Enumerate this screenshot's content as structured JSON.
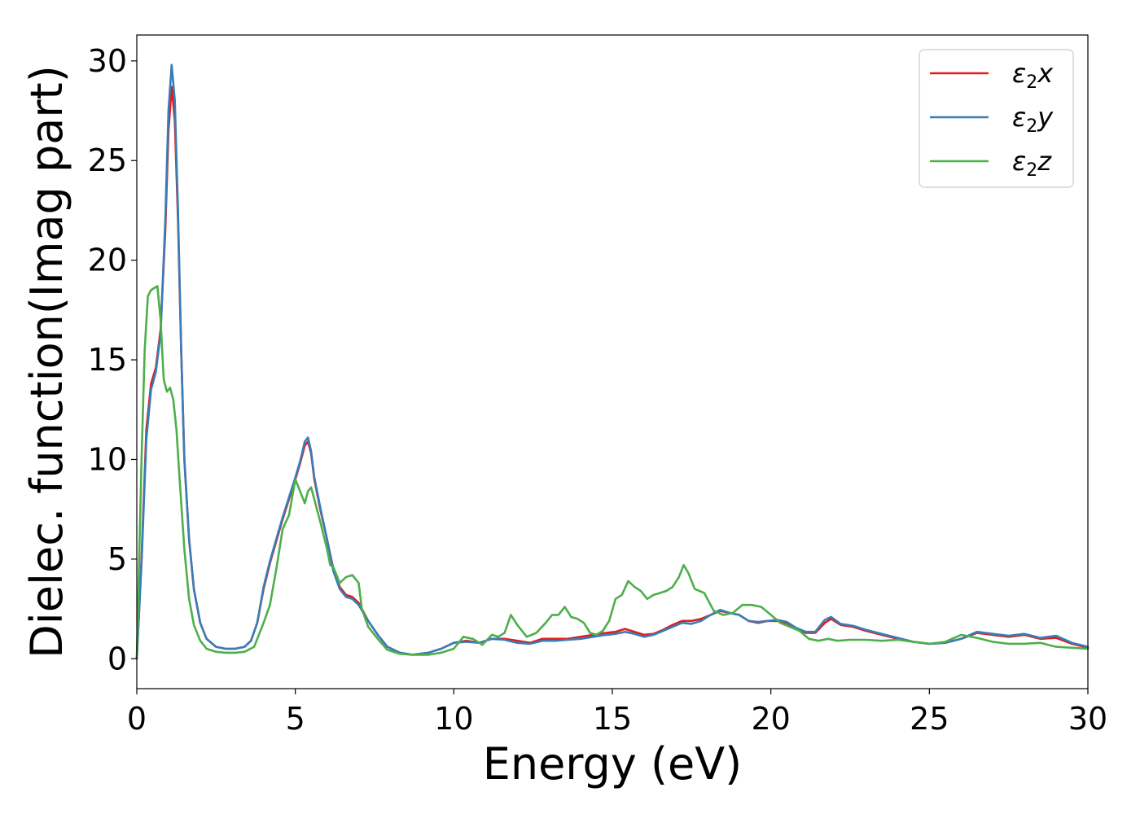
{
  "chart_data": {
    "type": "line",
    "title": "",
    "xlabel": "Energy (eV)",
    "ylabel": "Dielec. function(Imag part)",
    "xlim": [
      0,
      30
    ],
    "ylim": [
      -1.5,
      31.3
    ],
    "xticks": [
      "0",
      "5",
      "10",
      "15",
      "20",
      "25",
      "30"
    ],
    "yticks": [
      "0",
      "5",
      "10",
      "15",
      "20",
      "25",
      "30"
    ],
    "grid": false,
    "legend_position": "top-right",
    "series": [
      {
        "name": "ε2x",
        "legend": {
          "base": "ε",
          "sub": "2",
          "suffix": "x"
        },
        "color": "#e41a1c",
        "x": [
          0,
          0.15,
          0.3,
          0.45,
          0.6,
          0.75,
          0.9,
          1.0,
          1.1,
          1.2,
          1.3,
          1.4,
          1.5,
          1.65,
          1.8,
          2.0,
          2.2,
          2.5,
          2.8,
          3.1,
          3.4,
          3.6,
          3.8,
          4.0,
          4.2,
          4.4,
          4.6,
          4.8,
          5.0,
          5.15,
          5.3,
          5.4,
          5.5,
          5.6,
          5.8,
          6.0,
          6.2,
          6.4,
          6.6,
          6.8,
          7.0,
          7.3,
          7.6,
          7.9,
          8.3,
          8.7,
          9.2,
          9.6,
          10.0,
          10.4,
          10.8,
          11.2,
          11.6,
          12.0,
          12.4,
          12.8,
          13.2,
          13.6,
          14.0,
          14.4,
          14.8,
          15.1,
          15.4,
          15.7,
          16.0,
          16.3,
          16.6,
          16.9,
          17.2,
          17.5,
          17.8,
          18.1,
          18.4,
          18.7,
          19.0,
          19.3,
          19.6,
          19.9,
          20.2,
          20.5,
          20.8,
          21.1,
          21.4,
          21.7,
          21.9,
          22.2,
          22.6,
          23.0,
          23.5,
          24.0,
          24.5,
          25.0,
          25.5,
          26.0,
          26.5,
          27.0,
          27.5,
          28.0,
          28.5,
          29.0,
          29.5,
          30.0
        ],
        "y": [
          0,
          5,
          11.5,
          13.8,
          14.6,
          16.5,
          21.5,
          26.5,
          28.7,
          27.0,
          22.0,
          15.5,
          10.0,
          6.0,
          3.5,
          1.8,
          1.0,
          0.6,
          0.5,
          0.5,
          0.6,
          0.9,
          1.8,
          3.5,
          4.8,
          5.9,
          7.0,
          8.0,
          9.0,
          9.8,
          10.7,
          10.9,
          10.3,
          9.0,
          7.4,
          6.0,
          4.5,
          3.6,
          3.2,
          3.1,
          2.8,
          1.9,
          1.2,
          0.6,
          0.3,
          0.2,
          0.3,
          0.5,
          0.8,
          0.9,
          0.8,
          1.0,
          1.0,
          0.9,
          0.8,
          1.0,
          1.0,
          1.0,
          1.1,
          1.2,
          1.3,
          1.35,
          1.5,
          1.35,
          1.2,
          1.25,
          1.45,
          1.7,
          1.9,
          1.9,
          2.0,
          2.2,
          2.4,
          2.3,
          2.2,
          1.9,
          1.8,
          1.9,
          1.9,
          1.8,
          1.5,
          1.3,
          1.3,
          1.8,
          2.0,
          1.7,
          1.6,
          1.4,
          1.2,
          1.0,
          0.85,
          0.75,
          0.8,
          1.0,
          1.3,
          1.2,
          1.1,
          1.2,
          1.0,
          1.05,
          0.75,
          0.55
        ]
      },
      {
        "name": "ε2y",
        "legend": {
          "base": "ε",
          "sub": "2",
          "suffix": "y"
        },
        "color": "#377eb8",
        "x": [
          0,
          0.15,
          0.3,
          0.45,
          0.6,
          0.75,
          0.9,
          1.0,
          1.1,
          1.2,
          1.3,
          1.4,
          1.5,
          1.65,
          1.8,
          2.0,
          2.2,
          2.5,
          2.8,
          3.1,
          3.4,
          3.6,
          3.8,
          4.0,
          4.2,
          4.4,
          4.6,
          4.8,
          5.0,
          5.15,
          5.3,
          5.4,
          5.5,
          5.6,
          5.8,
          6.0,
          6.2,
          6.4,
          6.6,
          6.8,
          7.0,
          7.3,
          7.6,
          7.9,
          8.3,
          8.7,
          9.2,
          9.6,
          10.0,
          10.4,
          10.8,
          11.2,
          11.6,
          12.0,
          12.4,
          12.8,
          13.2,
          13.6,
          14.0,
          14.4,
          14.8,
          15.1,
          15.4,
          15.7,
          16.0,
          16.3,
          16.6,
          16.9,
          17.2,
          17.5,
          17.8,
          18.1,
          18.4,
          18.7,
          19.0,
          19.3,
          19.6,
          19.9,
          20.2,
          20.5,
          20.8,
          21.1,
          21.4,
          21.7,
          21.9,
          22.2,
          22.6,
          23.0,
          23.5,
          24.0,
          24.5,
          25.0,
          25.5,
          26.0,
          26.5,
          27.0,
          27.5,
          28.0,
          28.5,
          29.0,
          29.5,
          30.0
        ],
        "y": [
          0,
          4.8,
          11.0,
          13.5,
          14.4,
          16.3,
          22.0,
          27.5,
          29.8,
          28.0,
          22.5,
          15.5,
          10.0,
          6.0,
          3.5,
          1.8,
          1.0,
          0.6,
          0.5,
          0.5,
          0.6,
          0.9,
          1.8,
          3.6,
          4.9,
          6.0,
          7.1,
          8.1,
          9.1,
          9.9,
          10.9,
          11.1,
          10.4,
          9.1,
          7.5,
          6.0,
          4.4,
          3.5,
          3.1,
          3.0,
          2.7,
          1.9,
          1.2,
          0.6,
          0.3,
          0.2,
          0.3,
          0.5,
          0.8,
          0.85,
          0.8,
          1.0,
          0.95,
          0.8,
          0.75,
          0.9,
          0.9,
          0.95,
          1.0,
          1.1,
          1.2,
          1.25,
          1.35,
          1.25,
          1.1,
          1.2,
          1.4,
          1.6,
          1.8,
          1.75,
          1.9,
          2.2,
          2.45,
          2.3,
          2.2,
          1.9,
          1.85,
          1.9,
          1.95,
          1.85,
          1.55,
          1.35,
          1.35,
          1.95,
          2.1,
          1.75,
          1.65,
          1.45,
          1.25,
          1.05,
          0.85,
          0.75,
          0.8,
          1.0,
          1.35,
          1.25,
          1.15,
          1.25,
          1.05,
          1.15,
          0.8,
          0.6
        ]
      },
      {
        "name": "ε2z",
        "legend": {
          "base": "ε",
          "sub": "2",
          "suffix": "z"
        },
        "color": "#4daf4a",
        "x": [
          0,
          0.15,
          0.25,
          0.35,
          0.45,
          0.55,
          0.65,
          0.75,
          0.85,
          0.95,
          1.05,
          1.15,
          1.25,
          1.35,
          1.5,
          1.65,
          1.8,
          2.0,
          2.2,
          2.5,
          2.8,
          3.1,
          3.4,
          3.7,
          4.0,
          4.2,
          4.4,
          4.6,
          4.8,
          5.0,
          5.2,
          5.3,
          5.4,
          5.5,
          5.6,
          5.8,
          6.0,
          6.1,
          6.2,
          6.4,
          6.6,
          6.8,
          7.0,
          7.1,
          7.3,
          7.6,
          7.9,
          8.3,
          8.7,
          9.2,
          9.6,
          10.0,
          10.3,
          10.6,
          10.9,
          11.2,
          11.4,
          11.6,
          11.8,
          12.0,
          12.3,
          12.6,
          12.9,
          13.1,
          13.3,
          13.5,
          13.7,
          13.9,
          14.1,
          14.3,
          14.5,
          14.7,
          14.9,
          15.1,
          15.3,
          15.5,
          15.7,
          15.9,
          16.1,
          16.3,
          16.5,
          16.7,
          16.9,
          17.1,
          17.25,
          17.4,
          17.6,
          17.9,
          18.2,
          18.5,
          18.8,
          19.1,
          19.4,
          19.7,
          20.0,
          20.3,
          20.6,
          20.9,
          21.2,
          21.5,
          21.8,
          22.1,
          22.5,
          23.0,
          23.5,
          24.0,
          24.5,
          25.0,
          25.5,
          26.0,
          26.5,
          27.0,
          27.5,
          28.0,
          28.5,
          29.0,
          29.5,
          30.0
        ],
        "y": [
          0,
          10.0,
          15.5,
          18.2,
          18.5,
          18.6,
          18.7,
          17.0,
          14.0,
          13.4,
          13.6,
          13.0,
          11.5,
          9.0,
          5.5,
          3.0,
          1.7,
          0.9,
          0.5,
          0.35,
          0.3,
          0.3,
          0.35,
          0.6,
          1.8,
          2.7,
          4.5,
          6.5,
          7.2,
          9.0,
          8.2,
          7.8,
          8.4,
          8.6,
          8.0,
          6.8,
          5.5,
          4.7,
          4.6,
          3.8,
          4.1,
          4.2,
          3.8,
          2.5,
          1.6,
          1.0,
          0.45,
          0.25,
          0.2,
          0.2,
          0.3,
          0.5,
          1.1,
          1.0,
          0.7,
          1.2,
          1.1,
          1.3,
          2.2,
          1.7,
          1.1,
          1.3,
          1.8,
          2.2,
          2.2,
          2.6,
          2.1,
          2.0,
          1.8,
          1.3,
          1.2,
          1.4,
          1.9,
          3.0,
          3.2,
          3.9,
          3.6,
          3.4,
          3.0,
          3.2,
          3.3,
          3.4,
          3.6,
          4.1,
          4.7,
          4.3,
          3.5,
          3.3,
          2.4,
          2.2,
          2.3,
          2.7,
          2.7,
          2.6,
          2.2,
          1.8,
          1.6,
          1.4,
          1.0,
          0.9,
          1.0,
          0.9,
          0.95,
          0.95,
          0.9,
          0.95,
          0.85,
          0.75,
          0.85,
          1.2,
          1.05,
          0.85,
          0.75,
          0.75,
          0.8,
          0.6,
          0.55,
          0.5
        ]
      }
    ]
  }
}
